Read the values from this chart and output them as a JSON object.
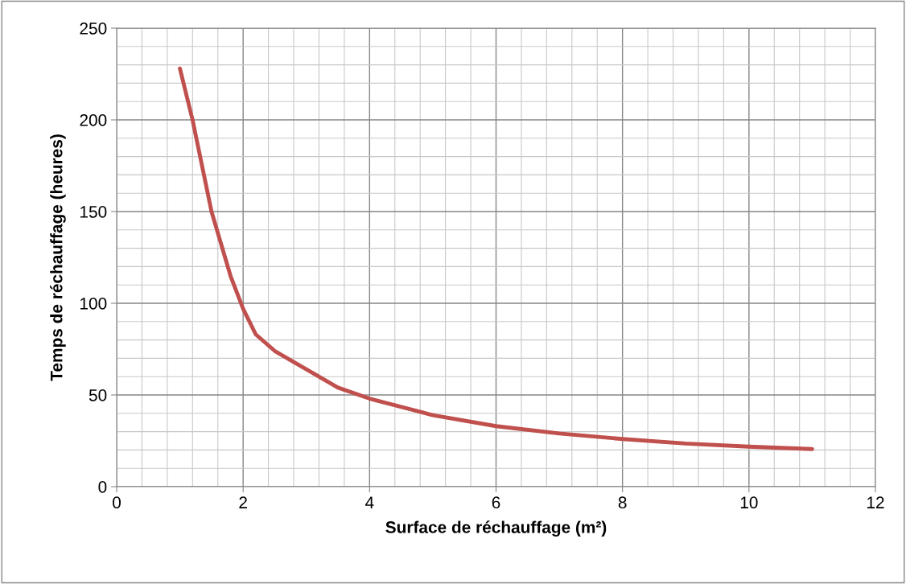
{
  "chart_data": {
    "type": "line",
    "xlabel": "Surface de réchauffage (m²)",
    "ylabel": "Temps de réchauffage (heures)",
    "xlim": [
      0,
      12
    ],
    "xticks": [
      0,
      2,
      4,
      6,
      8,
      10,
      12
    ],
    "ylim": [
      0,
      250
    ],
    "yticks": [
      0,
      50,
      100,
      150,
      200,
      250
    ],
    "grid": true,
    "marker": "none",
    "line_style": "solid",
    "series": [
      {
        "color": "#c0504d",
        "x": [
          1,
          1.2,
          1.5,
          1.8,
          2,
          2.2,
          2.5,
          3,
          3.5,
          4,
          5,
          6,
          7,
          8,
          9,
          10,
          11
        ],
        "values": [
          228,
          200,
          150,
          115,
          97,
          83,
          74,
          64,
          54,
          48,
          39,
          33,
          29,
          26,
          23.5,
          21.8,
          20.5
        ]
      }
    ]
  }
}
